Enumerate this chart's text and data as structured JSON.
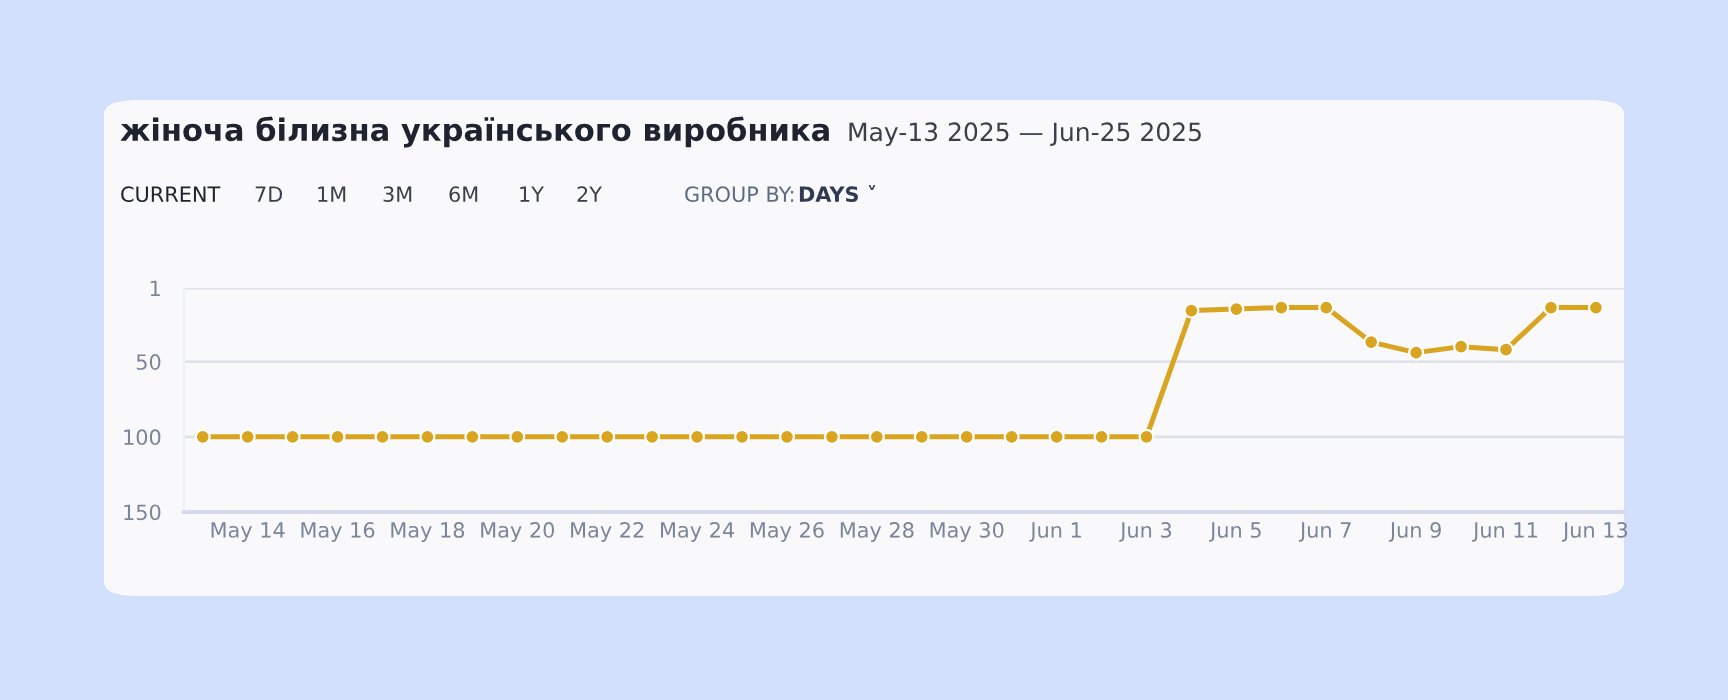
{
  "chart_data": {
    "type": "line",
    "title": "жіноча білизна українського виробника",
    "subtitle": "May-13 2025 — Jun-25 2025",
    "annotations": [
      "CURRENT",
      "7D",
      "1M",
      "3M",
      "6M",
      "1Y",
      "2Y",
      "GROUP BY:",
      "DAYS ˅"
    ],
    "x": [
      "2025-05-13",
      "2025-05-14",
      "2025-05-15",
      "2025-05-16",
      "2025-05-17",
      "2025-05-18",
      "2025-05-19",
      "2025-05-20",
      "2025-05-21",
      "2025-05-22",
      "2025-05-23",
      "2025-05-24",
      "2025-05-25",
      "2025-05-26",
      "2025-05-27",
      "2025-05-28",
      "2025-05-29",
      "2025-05-30",
      "2025-05-31",
      "2025-06-01",
      "2025-06-02",
      "2025-06-03",
      "2025-06-04",
      "2025-06-05",
      "2025-06-06",
      "2025-06-07",
      "2025-06-08",
      "2025-06-09",
      "2025-06-10",
      "2025-06-11",
      "2025-06-12",
      "2025-06-13"
    ],
    "series": [
      {
        "color": "#d9a520",
        "values": [
          100,
          100,
          100,
          100,
          100,
          100,
          100,
          100,
          100,
          100,
          100,
          100,
          100,
          100,
          100,
          100,
          100,
          100,
          100,
          100,
          100,
          100,
          16,
          15,
          14,
          14,
          37,
          44,
          40,
          42,
          14,
          14
        ]
      }
    ],
    "ylim": [
      150,
      1
    ],
    "yticks": [
      1,
      50,
      100,
      150
    ],
    "xlim": [
      "2025-05-12T14:00",
      "2025-06-13T15:00"
    ],
    "xticks": [
      {
        "value": "2025-05-14",
        "label": "May 14"
      },
      {
        "value": "2025-05-16",
        "label": "May 16"
      },
      {
        "value": "2025-05-18",
        "label": "May 18"
      },
      {
        "value": "2025-05-20",
        "label": "May 20"
      },
      {
        "value": "2025-05-22",
        "label": "May 22"
      },
      {
        "value": "2025-05-24",
        "label": "May 24"
      },
      {
        "value": "2025-05-26",
        "label": "May 26"
      },
      {
        "value": "2025-05-28",
        "label": "May 28"
      },
      {
        "value": "2025-05-30",
        "label": "May 30"
      },
      {
        "value": "2025-06-01",
        "label": "Jun 1"
      },
      {
        "value": "2025-06-03",
        "label": "Jun 3"
      },
      {
        "value": "2025-06-05",
        "label": "Jun 5"
      },
      {
        "value": "2025-06-07",
        "label": "Jun 7"
      },
      {
        "value": "2025-06-09",
        "label": "Jun 9"
      },
      {
        "value": "2025-06-11",
        "label": "Jun 11"
      },
      {
        "value": "2025-06-13",
        "label": "Jun 13"
      }
    ],
    "grid": "y",
    "marker": "circle",
    "line_style": "solid"
  }
}
